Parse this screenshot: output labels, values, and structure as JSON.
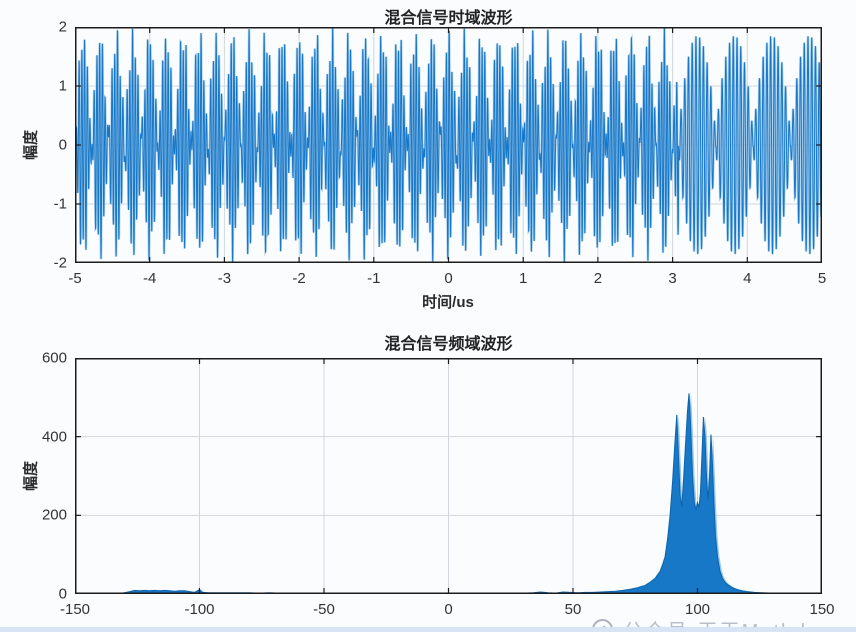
{
  "figure": {
    "background": "#fbfcfe",
    "frame_color": "#1c1c1c",
    "grid_color": "#d2d7dd",
    "tick_label_color": "#333333",
    "footer_band_color": "#d6e4f5"
  },
  "watermark": {
    "text": "公众号·天天Matlab"
  },
  "chart_data": [
    {
      "type": "line",
      "title": "混合信号时域波形",
      "xlabel": "时间/us",
      "ylabel": "幅度",
      "xlim": [
        -5,
        5
      ],
      "ylim": [
        -2,
        2
      ],
      "xticks": [
        -5,
        -4,
        -3,
        -2,
        -1,
        0,
        1,
        2,
        3,
        4,
        5
      ],
      "yticks": [
        -2,
        -1,
        0,
        1,
        2
      ],
      "grid": true,
      "line_color": "#1878c8",
      "line_color_light": "#9cc8e8",
      "signal_model": {
        "description": "Dense two-tone beat waveform from t=-5us to t≈3.1us (envelope peaks ±2, ≈4.5 beat lobes per us, dense carrier), followed by four wide pulsed lobes from t≈3.1us to 5us with peak amplitude ≈1.85 and lobe period ≈0.5us.",
        "samples": 5600,
        "beat": {
          "t_start": -5,
          "t_end": 3.08,
          "f1": 25,
          "f2": 29.5,
          "scale": 0.9,
          "extra_freq": 15.3,
          "extra_amp": 0.2
        },
        "pulses": {
          "t_start": 3.08,
          "t_end": 5,
          "carrier_freq": 20,
          "lobe_period": 0.5,
          "amplitude": 1.85,
          "envelope_exponent": 0.7
        }
      }
    },
    {
      "type": "line",
      "title": "混合信号频域波形",
      "xlabel": "",
      "ylabel": "幅度",
      "xlim": [
        -150,
        150
      ],
      "ylim": [
        0,
        600
      ],
      "xticks": [
        -150,
        -100,
        -50,
        0,
        50,
        100,
        150
      ],
      "yticks": [
        0,
        200,
        400,
        600
      ],
      "grid": true,
      "line_color": "#1878c8",
      "line_color_light": "#7db8e0",
      "edge_color": "#0e66ad",
      "points": [
        [
          -150,
          0
        ],
        [
          -136,
          0
        ],
        [
          -131,
          2
        ],
        [
          -128,
          6
        ],
        [
          -126,
          9
        ],
        [
          -124,
          8
        ],
        [
          -122,
          9
        ],
        [
          -120,
          8
        ],
        [
          -118,
          9
        ],
        [
          -116,
          8
        ],
        [
          -114,
          9
        ],
        [
          -112,
          8
        ],
        [
          -110,
          7
        ],
        [
          -108,
          8
        ],
        [
          -106,
          8
        ],
        [
          -104,
          6
        ],
        [
          -102,
          4
        ],
        [
          -100,
          11
        ],
        [
          -99,
          4
        ],
        [
          -96,
          3
        ],
        [
          -92,
          3
        ],
        [
          -88,
          3
        ],
        [
          -84,
          3
        ],
        [
          -80,
          3
        ],
        [
          -76,
          2
        ],
        [
          -72,
          3
        ],
        [
          -68,
          2
        ],
        [
          -64,
          2
        ],
        [
          -60,
          2
        ],
        [
          -55,
          2
        ],
        [
          -50,
          2
        ],
        [
          -45,
          2
        ],
        [
          -40,
          2
        ],
        [
          -35,
          2
        ],
        [
          -30,
          1
        ],
        [
          -25,
          1
        ],
        [
          -20,
          1
        ],
        [
          -15,
          1
        ],
        [
          -10,
          1
        ],
        [
          -5,
          1
        ],
        [
          0,
          1
        ],
        [
          5,
          1
        ],
        [
          10,
          1
        ],
        [
          15,
          1
        ],
        [
          20,
          1
        ],
        [
          25,
          1
        ],
        [
          30,
          2
        ],
        [
          34,
          3
        ],
        [
          37,
          5
        ],
        [
          40,
          3
        ],
        [
          43,
          2
        ],
        [
          46,
          5
        ],
        [
          49,
          4
        ],
        [
          52,
          3
        ],
        [
          55,
          4
        ],
        [
          58,
          4
        ],
        [
          61,
          5
        ],
        [
          64,
          6
        ],
        [
          67,
          7
        ],
        [
          70,
          9
        ],
        [
          73,
          12
        ],
        [
          76,
          16
        ],
        [
          79,
          22
        ],
        [
          81,
          30
        ],
        [
          83,
          40
        ],
        [
          85,
          58
        ],
        [
          86,
          75
        ],
        [
          87,
          95
        ],
        [
          88,
          140
        ],
        [
          89,
          200
        ],
        [
          90,
          285
        ],
        [
          91,
          390
        ],
        [
          91.7,
          455
        ],
        [
          92.3,
          355
        ],
        [
          93,
          250
        ],
        [
          93.7,
          222
        ],
        [
          94.4,
          290
        ],
        [
          95.2,
          380
        ],
        [
          96,
          465
        ],
        [
          96.6,
          510
        ],
        [
          97.2,
          430
        ],
        [
          98,
          300
        ],
        [
          98.7,
          232
        ],
        [
          99.4,
          214
        ],
        [
          100,
          232
        ],
        [
          100.6,
          220
        ],
        [
          101.2,
          258
        ],
        [
          101.8,
          352
        ],
        [
          102.4,
          450
        ],
        [
          103,
          398
        ],
        [
          103.6,
          298
        ],
        [
          104.2,
          238
        ],
        [
          104.8,
          292
        ],
        [
          105.4,
          405
        ],
        [
          106,
          328
        ],
        [
          106.6,
          228
        ],
        [
          107.2,
          148
        ],
        [
          108,
          95
        ],
        [
          109,
          58
        ],
        [
          110,
          40
        ],
        [
          111,
          30
        ],
        [
          112,
          24
        ],
        [
          113,
          20
        ],
        [
          114,
          16
        ],
        [
          116,
          11
        ],
        [
          118,
          8
        ],
        [
          120,
          6
        ],
        [
          123,
          4
        ],
        [
          126,
          3
        ],
        [
          130,
          2
        ],
        [
          135,
          1
        ],
        [
          140,
          0
        ],
        [
          150,
          0
        ]
      ]
    }
  ]
}
